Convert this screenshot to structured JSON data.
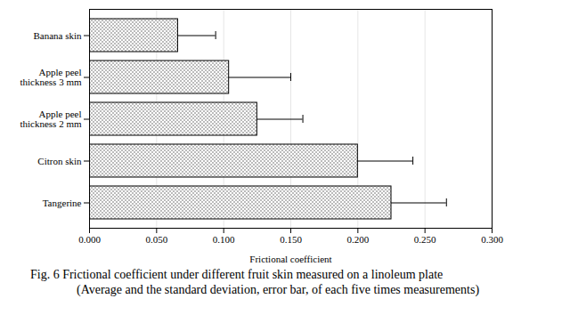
{
  "chart_data": {
    "type": "bar",
    "orientation": "horizontal",
    "title": "Fig. 6 Frictional coefficient under different fruit skin measured on a linoleum plate",
    "subtitle": "(Average and the standard deviation, error bar, of each five times measurements)",
    "xlabel": "Frictional coefficient",
    "categories": [
      "Banana skin",
      "Apple peel thickness 3 mm",
      "Apple peel thickness 2 mm",
      "Citron skin",
      "Tangerine"
    ],
    "values": [
      0.066,
      0.104,
      0.125,
      0.2,
      0.225
    ],
    "errors": [
      0.028,
      0.046,
      0.034,
      0.041,
      0.041
    ],
    "color": "#555555",
    "xlim": [
      0,
      0.3
    ],
    "xticks": [
      {
        "value": 0,
        "label": "0.000"
      },
      {
        "value": 0.05,
        "label": "0.050"
      },
      {
        "value": 0.1,
        "label": "0.100"
      },
      {
        "value": 0.15,
        "label": "0.150"
      },
      {
        "value": 0.2,
        "label": "0.200"
      },
      {
        "value": 0.25,
        "label": "0.250"
      },
      {
        "value": 0.3,
        "label": "0.300"
      }
    ],
    "grid": true
  }
}
